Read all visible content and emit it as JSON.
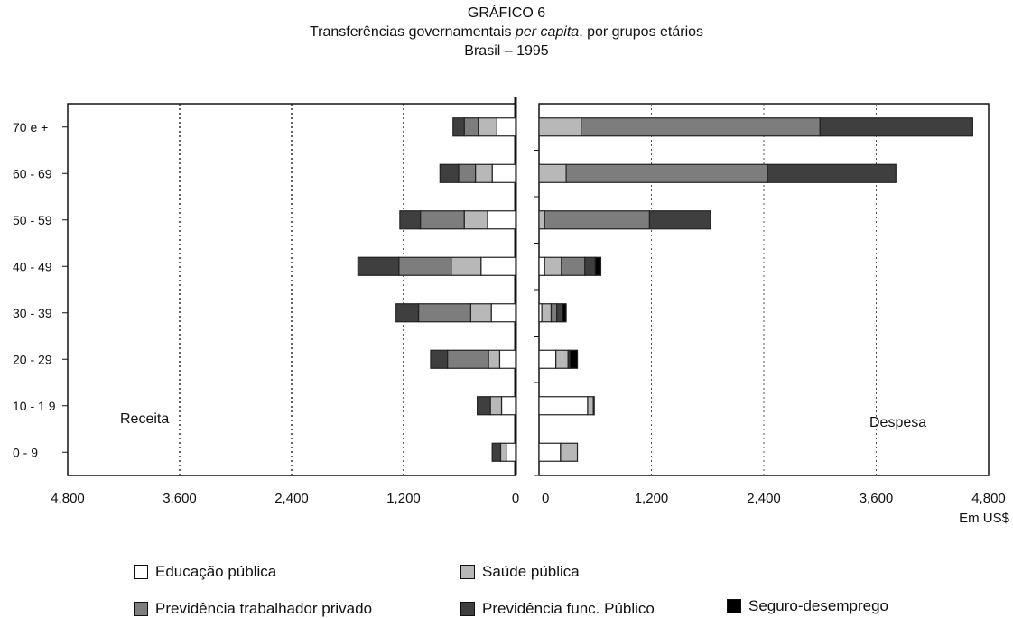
{
  "header": {
    "title": "GRÁFICO 6",
    "subtitle_pre": "Transferências  governamentais ",
    "subtitle_em": "per capita",
    "subtitle_post": ", por grupos etários",
    "subtitle2": "Brasil – 1995"
  },
  "colors": {
    "educacao": "#ffffff",
    "saude": "#b8b8b8",
    "prev_privado": "#7d7d7d",
    "prev_publico": "#3f3f3f",
    "seguro": "#000000"
  },
  "chart_data": {
    "type": "bar",
    "orientation": "horizontal",
    "layout": "back-to-back stacked",
    "categories": [
      "70 e +",
      "60 - 69",
      "50 - 59",
      "40 - 49",
      "30 - 39",
      "20 - 29",
      "10 - 1 9",
      "0 - 9"
    ],
    "xlim": [
      0,
      4800
    ],
    "unit_label": "Em US$",
    "left_panel": {
      "label": "Receita",
      "ticks": [
        "4,800",
        "3,600",
        "2,400",
        "1,200",
        "0"
      ],
      "tick_values": [
        4800,
        3600,
        2400,
        1200,
        0
      ],
      "series": [
        {
          "name": "Educação pública",
          "values": [
            200,
            250,
            300,
            370,
            260,
            170,
            150,
            100
          ]
        },
        {
          "name": "Saúde pública",
          "values": [
            200,
            180,
            250,
            320,
            220,
            120,
            120,
            60
          ]
        },
        {
          "name": "Previdência trabalhador privado",
          "values": [
            150,
            180,
            470,
            560,
            560,
            440,
            0,
            0
          ]
        },
        {
          "name": "Previdência func. Público",
          "values": [
            120,
            200,
            220,
            440,
            240,
            180,
            140,
            90
          ]
        },
        {
          "name": "Seguro-desemprego",
          "values": [
            0,
            0,
            0,
            0,
            0,
            0,
            0,
            0
          ]
        }
      ]
    },
    "right_panel": {
      "label": "Despesa",
      "ticks": [
        "0",
        "1,200",
        "2,400",
        "3,600",
        "4,800"
      ],
      "tick_values": [
        0,
        1200,
        2400,
        3600,
        4800
      ],
      "series": [
        {
          "name": "Educação pública",
          "values": [
            0,
            0,
            0,
            60,
            30,
            180,
            520,
            230
          ]
        },
        {
          "name": "Saúde pública",
          "values": [
            450,
            290,
            60,
            180,
            100,
            130,
            60,
            180
          ]
        },
        {
          "name": "Previdência trabalhador privado",
          "values": [
            2550,
            2150,
            1120,
            250,
            60,
            0,
            0,
            0
          ]
        },
        {
          "name": "Previdência func. Público",
          "values": [
            1630,
            1370,
            650,
            110,
            60,
            20,
            10,
            0
          ]
        },
        {
          "name": "Seguro-desemprego",
          "values": [
            0,
            0,
            0,
            60,
            40,
            80,
            0,
            0
          ]
        }
      ]
    },
    "legend": {
      "position": "bottom",
      "entries": [
        {
          "key": "educacao",
          "name": "Educação pública"
        },
        {
          "key": "saude",
          "name": "Saúde pública"
        },
        {
          "key": "prev_privado",
          "name": "Previdência trabalhador privado"
        },
        {
          "key": "prev_publico",
          "name": "Previdência func. Público"
        },
        {
          "key": "seguro",
          "name": "Seguro-desemprego"
        }
      ]
    },
    "grid": "dotted vertical"
  }
}
